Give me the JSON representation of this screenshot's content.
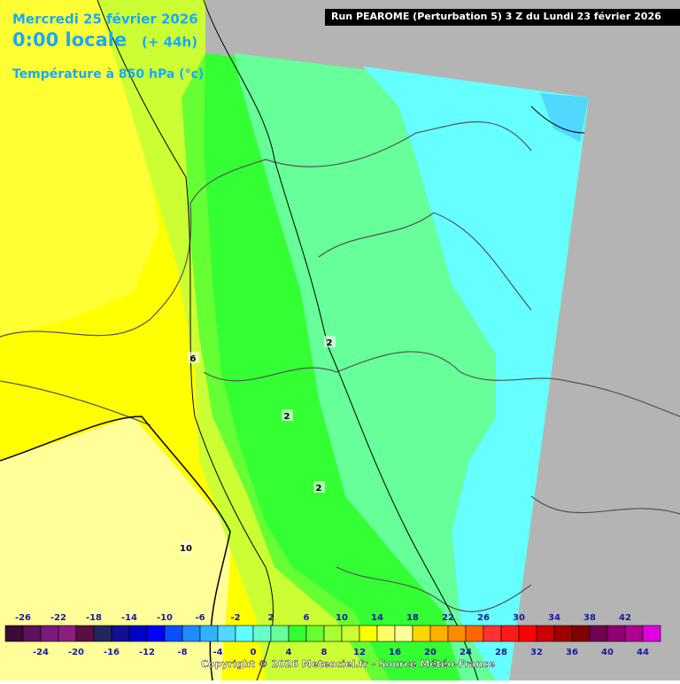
{
  "header": {
    "date": "Mercredi 25 février 2026",
    "time": "0:00 locale",
    "lead": "(+ 44h)",
    "variable": "Température à 850 hPa (°c)",
    "run": "Run PEAROME (Perturbation 5) 3 Z du Lundi 23 février 2026"
  },
  "contour_labels": [
    2,
    6,
    2,
    2,
    10
  ],
  "legend": {
    "ticks": [
      -26,
      -24,
      -22,
      -20,
      -18,
      -16,
      -14,
      -12,
      -10,
      -8,
      -6,
      -4,
      -2,
      0,
      2,
      4,
      6,
      8,
      10,
      12,
      14,
      16,
      18,
      20,
      22,
      24,
      26,
      28,
      30,
      32,
      34,
      36,
      38,
      40,
      42,
      44
    ],
    "colors": [
      "#3a0a3a",
      "#5c125c",
      "#7a1a7a",
      "#8a1f7f",
      "#5a0f40",
      "#24245e",
      "#101090",
      "#0000c8",
      "#0000ff",
      "#0a50ff",
      "#1e8cff",
      "#30b4ff",
      "#50d8ff",
      "#60ffff",
      "#66ffcc",
      "#66ff99",
      "#33ff33",
      "#66ff33",
      "#a8ff33",
      "#ccff33",
      "#ffff00",
      "#ffff66",
      "#ffff99",
      "#ffd700",
      "#ffb000",
      "#ff8c00",
      "#ff6600",
      "#ff3333",
      "#ff1a1a",
      "#ff0000",
      "#cc0000",
      "#a00000",
      "#800000",
      "#700050",
      "#900070",
      "#b00090",
      "#e000e0",
      "#ff33ff",
      "#ff77ff"
    ]
  },
  "footer": {
    "copyright": "Copyright © 2026 Meteociel.fr - Source Météo-France"
  }
}
